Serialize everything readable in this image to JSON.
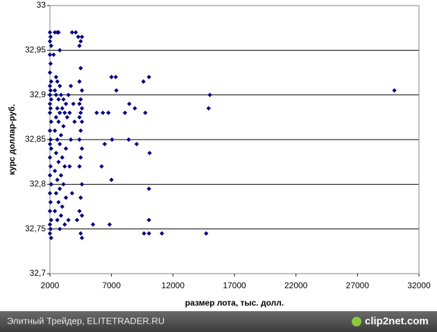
{
  "chart_data": {
    "type": "scatter",
    "x_label": "размер лота, тыс. долл.",
    "y_label": "курс доллар-руб.",
    "color": "#000080",
    "grid": true,
    "xlim": [
      2000,
      32000
    ],
    "xticks": [
      2000,
      7000,
      12000,
      17000,
      22000,
      27000,
      32000
    ],
    "ylim": [
      32.7,
      33
    ],
    "yticks": [
      {
        "value": 32.7,
        "label": "32,7"
      },
      {
        "value": 32.75,
        "label": "32,75"
      },
      {
        "value": 32.8,
        "label": "32,8"
      },
      {
        "value": 32.85,
        "label": "32,85"
      },
      {
        "value": 32.9,
        "label": "32,9"
      },
      {
        "value": 32.95,
        "label": "32,95"
      },
      33
    ],
    "x": [
      2000,
      2050,
      2000,
      2100,
      2000,
      2050,
      2000,
      2100,
      2000,
      2050,
      2000,
      2100,
      2000,
      2050,
      2000,
      2100,
      2000,
      2050,
      2000,
      2100,
      2000,
      2050,
      2000,
      2100,
      2000,
      2050,
      2000,
      2100,
      2000,
      2050,
      2000,
      2100,
      2300,
      2400,
      2600,
      2700,
      2800,
      2500,
      2600,
      2800,
      2400,
      2500,
      2700,
      2900,
      3100,
      3300,
      2600,
      2800,
      3000,
      3200,
      2500,
      2700,
      3100,
      3400,
      2400,
      2900,
      2600,
      2800,
      3300,
      2500,
      3000,
      2700,
      3200,
      2400,
      2900,
      2600,
      3100,
      2800,
      2500,
      3300,
      2700,
      3000,
      2400,
      2900,
      2600,
      3200,
      2800,
      3500,
      3600,
      3700,
      3800,
      3900,
      3700,
      3600,
      3800,
      3500,
      4000,
      4100,
      4300,
      4500,
      4400,
      4600,
      4500,
      4400,
      4600,
      4500,
      4400,
      4600,
      4500,
      4400,
      4600,
      4500,
      4400,
      4600,
      4500,
      4400,
      4600,
      4500,
      4400,
      4600,
      4500,
      4600,
      4200,
      5500,
      5800,
      6200,
      6300,
      6450,
      6750,
      6850,
      7000,
      7000,
      7050,
      7350,
      7400,
      8100,
      8400,
      8450,
      8900,
      9050,
      9600,
      9650,
      9750,
      10050,
      10100,
      10050,
      10050,
      10050,
      11100,
      14700,
      14900,
      15000,
      30000
    ],
    "values": [
      32.97,
      32.965,
      32.96,
      32.955,
      32.945,
      32.935,
      32.925,
      32.915,
      32.91,
      32.905,
      32.9,
      32.895,
      32.89,
      32.885,
      32.88,
      32.87,
      32.86,
      32.85,
      32.845,
      32.84,
      32.83,
      32.82,
      32.81,
      32.8,
      32.79,
      32.78,
      32.77,
      32.76,
      32.755,
      32.75,
      32.745,
      32.74,
      32.945,
      32.97,
      32.97,
      32.97,
      32.95,
      32.92,
      32.915,
      32.91,
      32.905,
      32.9,
      32.895,
      32.9,
      32.895,
      32.89,
      32.885,
      32.88,
      32.885,
      32.88,
      32.875,
      32.87,
      32.865,
      32.875,
      32.86,
      32.855,
      32.85,
      32.845,
      32.84,
      32.835,
      32.83,
      32.825,
      32.82,
      32.815,
      32.81,
      32.805,
      32.8,
      32.795,
      32.79,
      32.785,
      32.78,
      32.775,
      32.77,
      32.765,
      32.76,
      32.755,
      32.75,
      32.9,
      32.88,
      32.91,
      32.97,
      32.89,
      32.85,
      32.82,
      32.79,
      32.76,
      32.87,
      32.97,
      32.965,
      32.96,
      32.955,
      32.965,
      32.93,
      32.915,
      32.905,
      32.895,
      32.89,
      32.885,
      32.88,
      32.875,
      32.87,
      32.86,
      32.85,
      32.84,
      32.83,
      32.82,
      32.8,
      32.785,
      32.77,
      32.765,
      32.745,
      32.74,
      32.76,
      32.755,
      32.88,
      32.82,
      32.88,
      32.845,
      32.88,
      32.755,
      32.92,
      32.805,
      32.85,
      32.92,
      32.905,
      32.88,
      32.85,
      32.89,
      32.885,
      32.845,
      32.915,
      32.745,
      32.88,
      32.92,
      32.835,
      32.795,
      32.76,
      32.745,
      32.745,
      32.745,
      32.885,
      32.9,
      32.905
    ]
  },
  "footer": {
    "caption": "Элитный Трейдер, ELITETRADER.RU",
    "logo": "clip2net.com"
  }
}
